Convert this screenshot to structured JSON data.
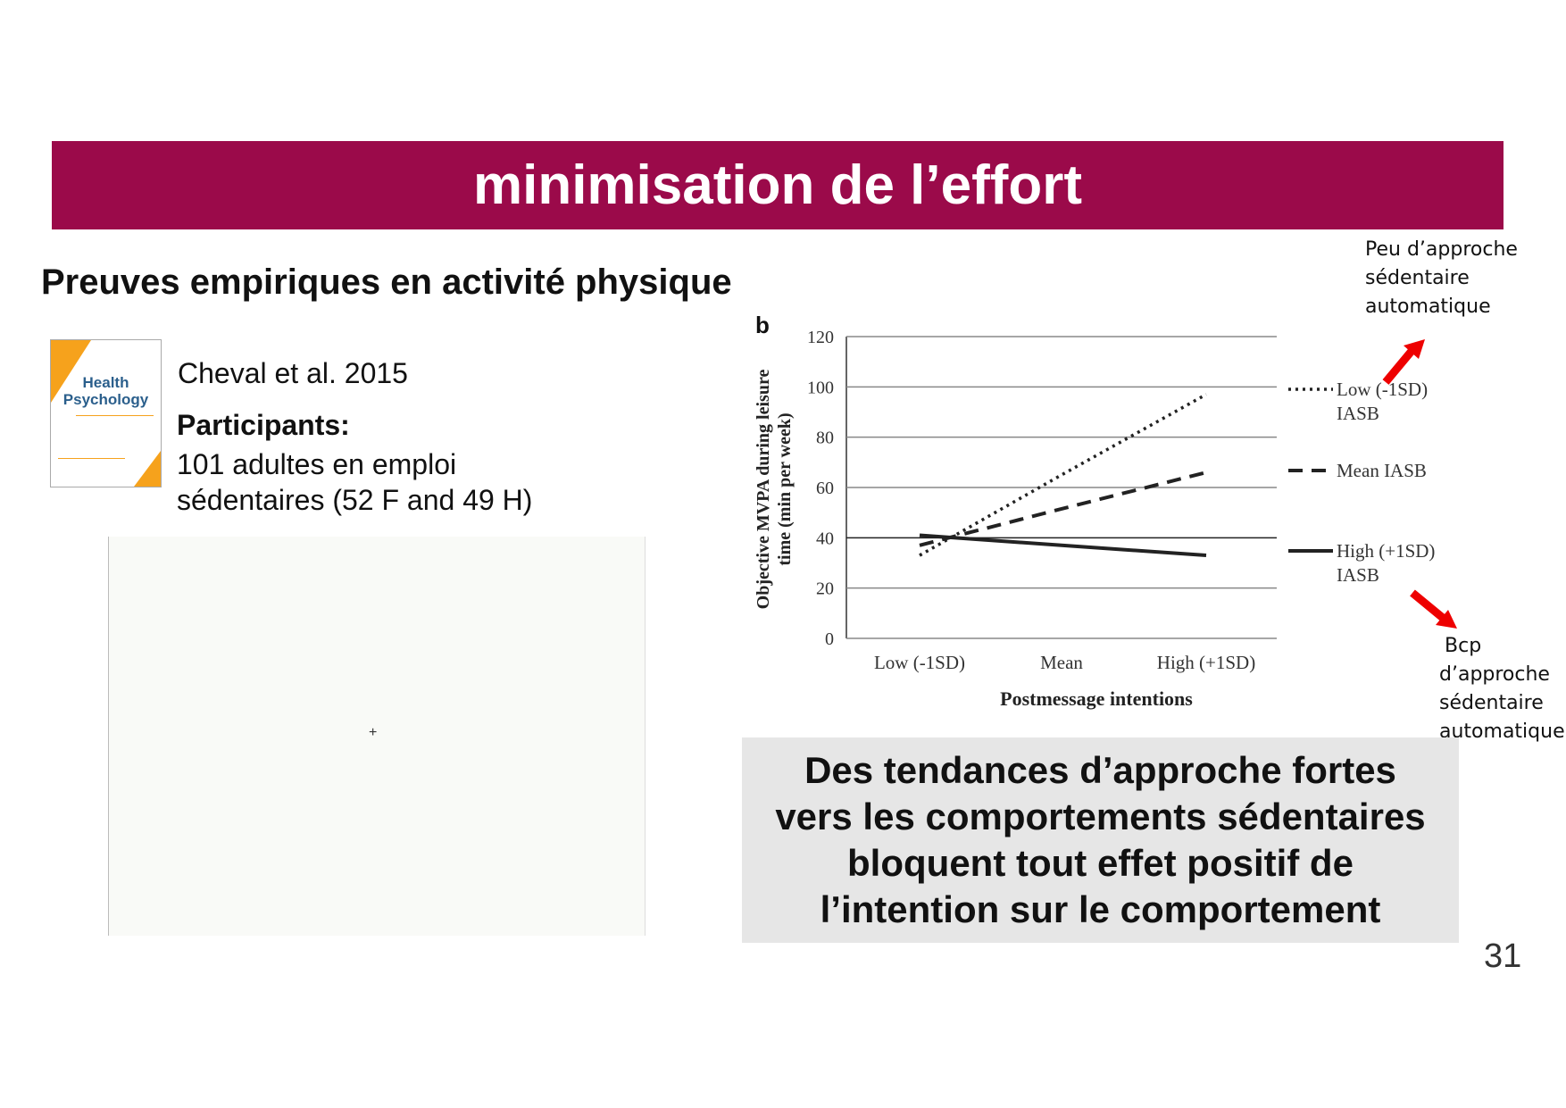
{
  "header": {
    "title": "minimisation de l’effort",
    "color": "#9b0a4a"
  },
  "subtitle": "Preuves empiriques en activité physique",
  "reference": {
    "journal_cover": {
      "title_line1": "Health",
      "title_line2": "Psychology"
    },
    "citation": "Cheval et al. 2015",
    "participants_label": "Participants:",
    "participants_line1": "101 adultes en emploi",
    "participants_line2": "sédentaires (52 F and 49 H)"
  },
  "blank_panel": {
    "marker": "+"
  },
  "annotations": {
    "top": [
      "Peu d’approche",
      "sédentaire",
      "automatique"
    ],
    "bottom": [
      "Bcp",
      "d’approche",
      "sédentaire",
      "automatique"
    ],
    "arrow_color": "#ee0000"
  },
  "conclusion": [
    "Des tendances d’approche fortes",
    "vers les comportements sédentaires",
    "bloquent tout effet positif de",
    "l’intention sur le comportement"
  ],
  "page_number": "31",
  "chart_data": {
    "type": "line",
    "panel_label": "b",
    "categories": [
      "Low (-1SD)",
      "Mean",
      "High (+1SD)"
    ],
    "xlabel": "Postmessage intentions",
    "ylabel_line1": "Objective  MVPA during  leisure",
    "ylabel_line2": "time  (min  per week)",
    "ylim": [
      0,
      120
    ],
    "yticks": [
      0,
      20,
      40,
      60,
      80,
      100,
      120
    ],
    "grid": true,
    "legend_placement": "right",
    "series": [
      {
        "name": "Low (-1SD) IASB",
        "legend_line1": "Low (-1SD)",
        "legend_line2": "IASB",
        "style": "dotted",
        "values": [
          33,
          65,
          97
        ]
      },
      {
        "name": "Mean IASB",
        "legend_line1": "Mean IASB",
        "legend_line2": "",
        "style": "dashed",
        "values": [
          37,
          51.5,
          66
        ]
      },
      {
        "name": "High (+1SD) IASB",
        "legend_line1": "High (+1SD)",
        "legend_line2": "IASB",
        "style": "solid",
        "values": [
          41,
          37,
          33
        ]
      }
    ]
  }
}
